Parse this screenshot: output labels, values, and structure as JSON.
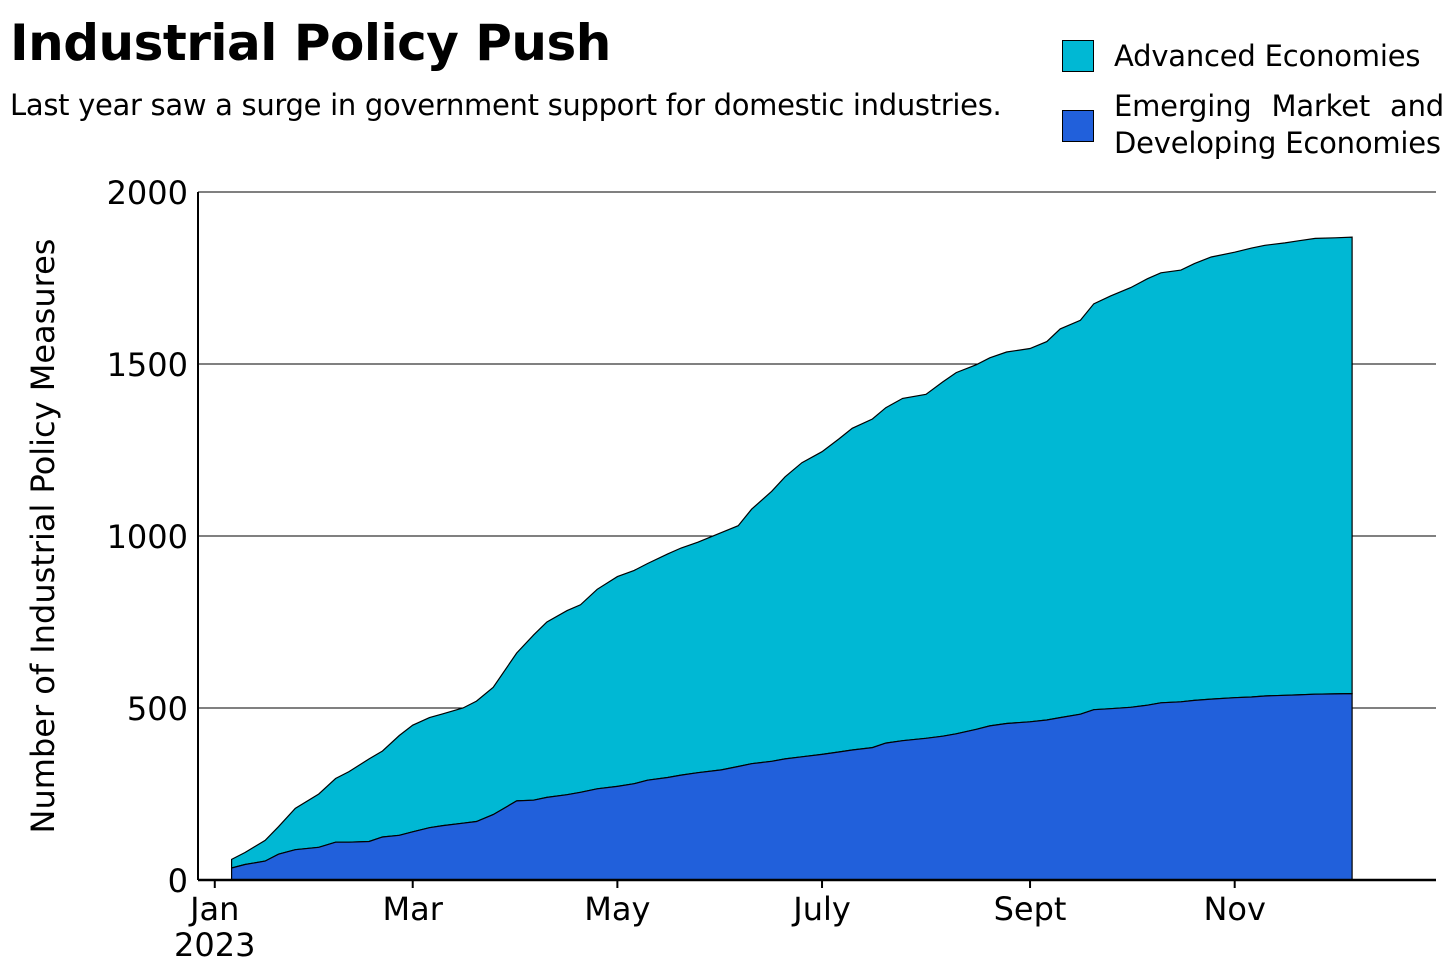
{
  "title": "Industrial Policy Push",
  "subtitle": "Last year saw a surge in government support for domestic industries.",
  "legend": [
    {
      "label": "Advanced Economies",
      "color": "#00B8D4"
    },
    {
      "label": "Emerging Market and Developing Economies",
      "color": "#2160DB"
    }
  ],
  "chart_data": {
    "type": "area",
    "stacked": true,
    "xlabel": "",
    "ylabel": "Number of Industrial Policy Measures",
    "ylim": [
      0,
      2000
    ],
    "yticks": [
      0,
      500,
      1000,
      1500,
      2000
    ],
    "x_axis": "day of year 2023",
    "xlim": [
      "2022-12-27",
      "2023-12-31"
    ],
    "xticks": [
      {
        "date": "2023-01-01",
        "label": "Jan",
        "sublabel": "2023"
      },
      {
        "date": "2023-03-01",
        "label": "Mar"
      },
      {
        "date": "2023-05-01",
        "label": "May"
      },
      {
        "date": "2023-07-01",
        "label": "July"
      },
      {
        "date": "2023-09-01",
        "label": "Sept"
      },
      {
        "date": "2023-11-01",
        "label": "Nov"
      }
    ],
    "grid": "horizontal",
    "legend_position": "top-right",
    "dates": [
      "2023-01-06",
      "2023-01-10",
      "2023-01-16",
      "2023-01-20",
      "2023-01-25",
      "2023-02-01",
      "2023-02-06",
      "2023-02-10",
      "2023-02-16",
      "2023-02-20",
      "2023-02-25",
      "2023-03-01",
      "2023-03-06",
      "2023-03-10",
      "2023-03-16",
      "2023-03-20",
      "2023-03-25",
      "2023-04-01",
      "2023-04-06",
      "2023-04-10",
      "2023-04-16",
      "2023-04-20",
      "2023-04-25",
      "2023-05-01",
      "2023-05-06",
      "2023-05-10",
      "2023-05-16",
      "2023-05-20",
      "2023-05-25",
      "2023-06-01",
      "2023-06-06",
      "2023-06-10",
      "2023-06-16",
      "2023-06-20",
      "2023-06-25",
      "2023-07-01",
      "2023-07-06",
      "2023-07-10",
      "2023-07-16",
      "2023-07-20",
      "2023-07-25",
      "2023-08-01",
      "2023-08-06",
      "2023-08-10",
      "2023-08-16",
      "2023-08-20",
      "2023-08-25",
      "2023-09-01",
      "2023-09-06",
      "2023-09-10",
      "2023-09-16",
      "2023-09-20",
      "2023-09-25",
      "2023-10-01",
      "2023-10-06",
      "2023-10-10",
      "2023-10-16",
      "2023-10-20",
      "2023-10-25",
      "2023-11-01",
      "2023-11-06",
      "2023-11-10",
      "2023-11-16",
      "2023-11-20",
      "2023-11-25",
      "2023-12-01",
      "2023-12-06"
    ],
    "series": [
      {
        "name": "Emerging Market and Developing Economies",
        "color": "#2160DB",
        "values": [
          35,
          45,
          55,
          75,
          88,
          95,
          110,
          110,
          112,
          125,
          130,
          140,
          152,
          158,
          165,
          170,
          190,
          230,
          232,
          240,
          248,
          255,
          265,
          272,
          280,
          290,
          298,
          305,
          312,
          320,
          330,
          338,
          345,
          352,
          358,
          365,
          372,
          378,
          385,
          398,
          405,
          412,
          418,
          425,
          438,
          448,
          455,
          460,
          465,
          472,
          482,
          495,
          498,
          502,
          508,
          515,
          518,
          522,
          526,
          530,
          532,
          535,
          537,
          538,
          540,
          541,
          542
        ]
      },
      {
        "name": "Advanced Economies",
        "color": "#00B8D4",
        "values": [
          25,
          35,
          60,
          80,
          120,
          155,
          185,
          205,
          240,
          250,
          290,
          310,
          320,
          325,
          335,
          350,
          370,
          430,
          480,
          510,
          535,
          545,
          580,
          610,
          620,
          630,
          650,
          660,
          670,
          690,
          700,
          740,
          785,
          820,
          855,
          880,
          910,
          935,
          955,
          975,
          995,
          1000,
          1030,
          1050,
          1060,
          1070,
          1080,
          1085,
          1100,
          1130,
          1145,
          1180,
          1200,
          1220,
          1240,
          1250,
          1255,
          1270,
          1285,
          1295,
          1305,
          1310,
          1315,
          1320,
          1325,
          1326,
          1327
        ]
      }
    ]
  }
}
